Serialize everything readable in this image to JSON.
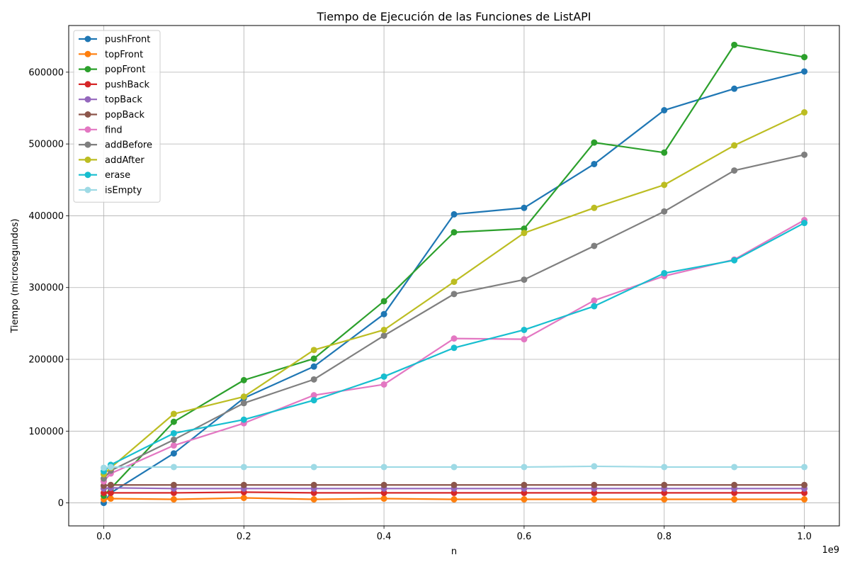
{
  "chart_data": {
    "type": "line",
    "title": "Tiempo de Ejecución de las Funciones de ListAPI",
    "xlabel": "n",
    "ylabel": "Tiempo (microsegundos)",
    "x_offset_label": "1e9",
    "xlim": [
      -50000000,
      1050000000
    ],
    "ylim": [
      -32000,
      665000
    ],
    "x_ticks": [
      0,
      200000000,
      400000000,
      600000000,
      800000000,
      1000000000
    ],
    "x_tick_labels": [
      "0.0",
      "0.2",
      "0.4",
      "0.6",
      "0.8",
      "1.0"
    ],
    "y_ticks": [
      0,
      100000,
      200000,
      300000,
      400000,
      500000,
      600000
    ],
    "y_tick_labels": [
      "0",
      "100000",
      "200000",
      "300000",
      "400000",
      "500000",
      "600000"
    ],
    "grid": true,
    "legend_position": "top-left",
    "x": [
      0,
      10000000,
      100000000,
      200000000,
      300000000,
      400000000,
      500000000,
      600000000,
      700000000,
      800000000,
      900000000,
      1000000000
    ],
    "series": [
      {
        "name": "pushFront",
        "color": "#1f77b4",
        "values": [
          0,
          14000,
          69000,
          146000,
          190000,
          263000,
          402000,
          411000,
          472000,
          547000,
          577000,
          601000
        ]
      },
      {
        "name": "topFront",
        "color": "#ff7f0e",
        "values": [
          5000,
          6000,
          5000,
          7000,
          5000,
          6000,
          5000,
          5000,
          5000,
          5000,
          5000,
          5000
        ]
      },
      {
        "name": "popFront",
        "color": "#2ca02c",
        "values": [
          10000,
          20000,
          113000,
          171000,
          201000,
          281000,
          377000,
          382000,
          502000,
          488000,
          638000,
          621000
        ]
      },
      {
        "name": "pushBack",
        "color": "#d62728",
        "values": [
          14000,
          14000,
          14000,
          15000,
          14000,
          14000,
          14000,
          14000,
          14000,
          14000,
          14000,
          14000
        ]
      },
      {
        "name": "topBack",
        "color": "#9467bd",
        "values": [
          20000,
          21000,
          20000,
          20000,
          20000,
          20000,
          20000,
          20000,
          20000,
          20000,
          20000,
          20000
        ]
      },
      {
        "name": "popBack",
        "color": "#8c564b",
        "values": [
          24000,
          25000,
          25000,
          25000,
          25000,
          25000,
          25000,
          25000,
          25000,
          25000,
          25000,
          25000
        ]
      },
      {
        "name": "find",
        "color": "#e377c2",
        "values": [
          30000,
          41000,
          80000,
          111000,
          150000,
          165000,
          229000,
          228000,
          282000,
          316000,
          339000,
          394000
        ]
      },
      {
        "name": "addBefore",
        "color": "#7f7f7f",
        "values": [
          34000,
          45000,
          88000,
          139000,
          172000,
          233000,
          291000,
          311000,
          358000,
          406000,
          463000,
          485000
        ]
      },
      {
        "name": "addAfter",
        "color": "#bcbd22",
        "values": [
          40000,
          49000,
          124000,
          148000,
          213000,
          241000,
          308000,
          376000,
          411000,
          443000,
          498000,
          544000
        ]
      },
      {
        "name": "erase",
        "color": "#17becf",
        "values": [
          44000,
          53000,
          97000,
          116000,
          143000,
          176000,
          216000,
          241000,
          274000,
          320000,
          338000,
          390000
        ]
      },
      {
        "name": "isEmpty",
        "color": "#9edae5",
        "values": [
          49000,
          50000,
          50000,
          50000,
          50000,
          50000,
          50000,
          50000,
          51000,
          50000,
          50000,
          50000
        ]
      }
    ]
  }
}
